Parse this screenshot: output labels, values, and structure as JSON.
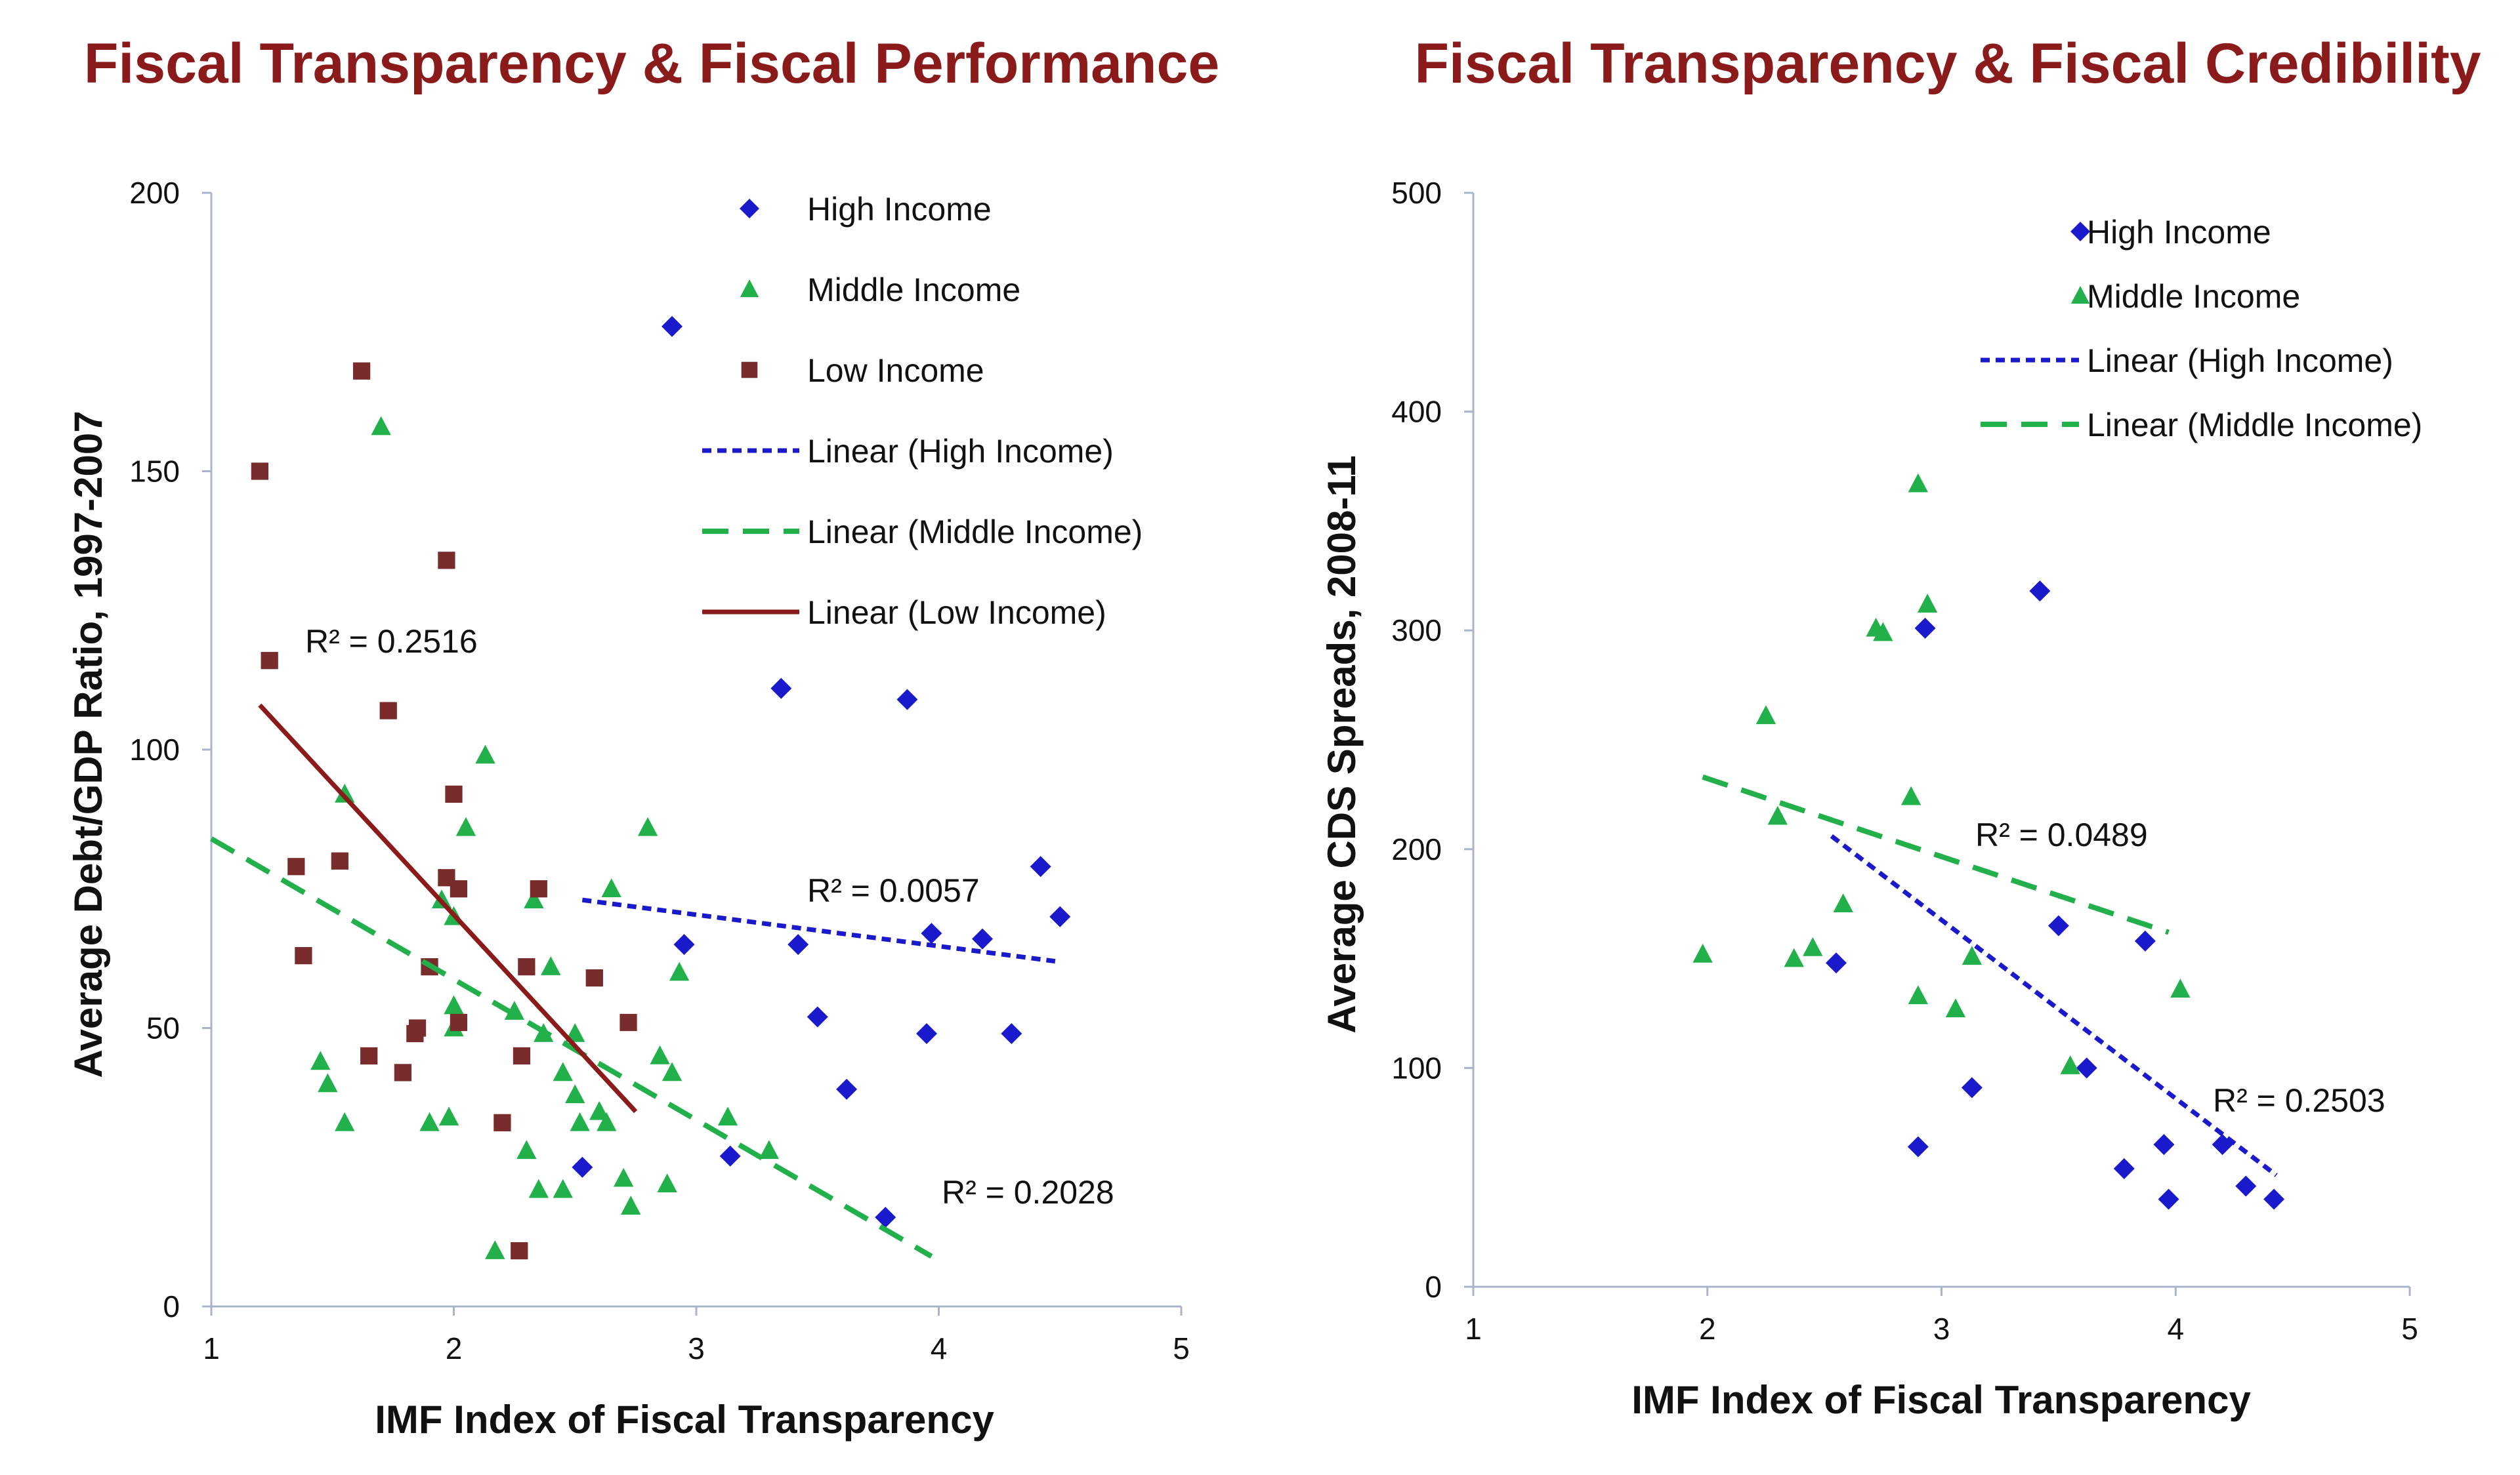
{
  "chart_data": [
    {
      "type": "scatter",
      "title": "Fiscal Transparency & Fiscal Performance",
      "xlabel": "IMF Index of Fiscal Transparency",
      "ylabel": "Average Debt/GDP Ratio, 1997-2007",
      "xlim": [
        1,
        5
      ],
      "ylim": [
        0,
        200
      ],
      "x_ticks": [
        "1",
        "2",
        "3",
        "4",
        "5"
      ],
      "y_ticks": [
        "0",
        "50",
        "100",
        "150",
        "200"
      ],
      "legend": [
        "High Income",
        "Middle Income",
        "Low Income",
        "Linear (High Income)",
        "Linear (Middle Income)",
        "Linear (Low Income)"
      ],
      "series": [
        {
          "name": "High Income",
          "marker": "diamond",
          "color": "#1a1acc",
          "points": [
            [
              2.9,
              176
            ],
            [
              3.35,
              111
            ],
            [
              3.87,
              109
            ],
            [
              2.95,
              65
            ],
            [
              3.42,
              65
            ],
            [
              3.5,
              52
            ],
            [
              3.62,
              39
            ],
            [
              3.97,
              67
            ],
            [
              4.18,
              66
            ],
            [
              4.42,
              79
            ],
            [
              4.5,
              70
            ],
            [
              3.95,
              49
            ],
            [
              4.3,
              49
            ],
            [
              3.14,
              27
            ],
            [
              2.53,
              25
            ],
            [
              3.78,
              16
            ]
          ]
        },
        {
          "name": "Middle Income",
          "marker": "triangle",
          "color": "#22b04a",
          "points": [
            [
              1.7,
              158
            ],
            [
              2.13,
              99
            ],
            [
              1.55,
              92
            ],
            [
              2.05,
              86
            ],
            [
              2.8,
              86
            ],
            [
              1.95,
              73
            ],
            [
              2.33,
              73
            ],
            [
              2.65,
              75
            ],
            [
              2.0,
              70
            ],
            [
              2.4,
              61
            ],
            [
              2.93,
              60
            ],
            [
              2.0,
              54
            ],
            [
              2.25,
              53
            ],
            [
              2.0,
              50
            ],
            [
              2.5,
              49
            ],
            [
              2.37,
              49
            ],
            [
              2.45,
              42
            ],
            [
              2.85,
              45
            ],
            [
              2.9,
              42
            ],
            [
              2.5,
              38
            ],
            [
              1.45,
              44
            ],
            [
              1.48,
              40
            ],
            [
              1.55,
              33
            ],
            [
              1.9,
              33
            ],
            [
              1.98,
              34
            ],
            [
              2.52,
              33
            ],
            [
              2.6,
              35
            ],
            [
              2.63,
              33
            ],
            [
              3.13,
              34
            ],
            [
              2.3,
              28
            ],
            [
              3.3,
              28
            ],
            [
              2.35,
              21
            ],
            [
              2.45,
              21
            ],
            [
              2.7,
              23
            ],
            [
              2.73,
              18
            ],
            [
              2.88,
              22
            ],
            [
              2.17,
              10
            ]
          ]
        },
        {
          "name": "Low Income",
          "marker": "square",
          "color": "#7a2b2b",
          "points": [
            [
              1.62,
              168
            ],
            [
              1.2,
              150
            ],
            [
              1.97,
              134
            ],
            [
              1.24,
              116
            ],
            [
              1.73,
              107
            ],
            [
              2.0,
              92
            ],
            [
              1.35,
              79
            ],
            [
              1.53,
              80
            ],
            [
              1.97,
              77
            ],
            [
              2.02,
              75
            ],
            [
              2.35,
              75
            ],
            [
              1.38,
              63
            ],
            [
              1.9,
              61
            ],
            [
              2.3,
              61
            ],
            [
              2.58,
              59
            ],
            [
              1.85,
              50
            ],
            [
              2.02,
              51
            ],
            [
              1.84,
              49
            ],
            [
              2.72,
              51
            ],
            [
              1.65,
              45
            ],
            [
              1.79,
              42
            ],
            [
              2.28,
              45
            ],
            [
              2.2,
              33
            ],
            [
              2.27,
              10
            ]
          ]
        }
      ],
      "trendlines": [
        {
          "name": "Linear (High Income)",
          "style": "dotted",
          "color": "#1a1acc",
          "x": [
            2.53,
            4.48
          ],
          "y": [
            73,
            62
          ],
          "r2_label": "R² = 0.0057"
        },
        {
          "name": "Linear (Middle Income)",
          "style": "dashed",
          "color": "#22b04a",
          "x": [
            1.0,
            3.97
          ],
          "y": [
            84,
            9
          ],
          "r2_label": "R² = 0.2028"
        },
        {
          "name": "Linear (Low Income)",
          "style": "solid",
          "color": "#8b1a1a",
          "x": [
            1.2,
            2.75
          ],
          "y": [
            108,
            35
          ],
          "r2_label": "R² = 0.2516"
        }
      ]
    },
    {
      "type": "scatter",
      "title": "Fiscal Transparency & Fiscal Credibility",
      "xlabel": "IMF Index of Fiscal Transparency",
      "ylabel": "Average CDS Spreads, 2008-11",
      "xlim": [
        1,
        5
      ],
      "ylim": [
        0,
        500
      ],
      "x_ticks": [
        "1",
        "2",
        "3",
        "4",
        "5"
      ],
      "y_ticks": [
        "0",
        "100",
        "200",
        "300",
        "400",
        "500"
      ],
      "legend": [
        "High Income",
        "Middle Income",
        "Linear (High Income)",
        "Linear (Middle Income)"
      ],
      "series": [
        {
          "name": "High Income",
          "marker": "diamond",
          "color": "#1a1acc",
          "points": [
            [
              3.42,
              318
            ],
            [
              2.93,
              301
            ],
            [
              3.5,
              165
            ],
            [
              3.87,
              158
            ],
            [
              2.55,
              148
            ],
            [
              3.62,
              100
            ],
            [
              3.13,
              91
            ],
            [
              2.9,
              64
            ],
            [
              4.2,
              65
            ],
            [
              3.95,
              65
            ],
            [
              3.78,
              54
            ],
            [
              4.3,
              46
            ],
            [
              3.97,
              40
            ],
            [
              4.42,
              40
            ]
          ]
        },
        {
          "name": "Middle Income",
          "marker": "triangle",
          "color": "#22b04a",
          "points": [
            [
              2.9,
              367
            ],
            [
              2.94,
              312
            ],
            [
              2.72,
              301
            ],
            [
              2.75,
              299
            ],
            [
              2.25,
              261
            ],
            [
              2.87,
              224
            ],
            [
              2.3,
              215
            ],
            [
              2.58,
              175
            ],
            [
              1.98,
              152
            ],
            [
              2.37,
              150
            ],
            [
              2.45,
              155
            ],
            [
              3.13,
              151
            ],
            [
              2.9,
              133
            ],
            [
              3.06,
              127
            ],
            [
              4.02,
              136
            ],
            [
              3.55,
              101
            ]
          ]
        }
      ],
      "trendlines": [
        {
          "name": "Linear (High Income)",
          "style": "dotted",
          "color": "#1a1acc",
          "x": [
            2.53,
            4.43
          ],
          "y": [
            206,
            51
          ],
          "r2_label": "R² = 0.2503"
        },
        {
          "name": "Linear (Middle Income)",
          "style": "dashed",
          "color": "#22b04a",
          "x": [
            1.98,
            3.97
          ],
          "y": [
            233,
            162
          ],
          "r2_label": "R² = 0.0489"
        }
      ]
    }
  ]
}
